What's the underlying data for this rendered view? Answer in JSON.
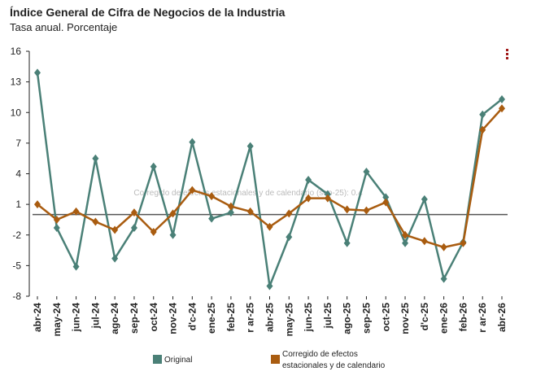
{
  "chart_data": {
    "type": "line",
    "title": "Índice General de Cifra de Negocios de la Industria",
    "subtitle": "Tasa anual. Porcentaje",
    "categories": [
      "abr-24",
      "may-24",
      "jun-24",
      "jul-24",
      "ago-24",
      "sep-24",
      "oct-24",
      "nov-24",
      "d'c-24",
      "ene-25",
      "feb-25",
      "r ar-25",
      "abr-25",
      "may-25",
      "jun-25",
      "jul-25",
      "ago-25",
      "sep-25",
      "oct-25",
      "nov-25",
      "d'c-25",
      "ene-26",
      "feb-26",
      "r ar-26",
      "abr-26"
    ],
    "series": [
      {
        "name": "Original",
        "color": "#4a8077",
        "values": [
          13.9,
          -1.3,
          -5.1,
          5.5,
          -4.3,
          -1.3,
          4.7,
          -2.0,
          7.1,
          -0.4,
          0.2,
          6.7,
          -7.0,
          -2.2,
          3.4,
          2.0,
          -2.8,
          4.2,
          1.7,
          -2.8,
          1.5,
          -6.3,
          -2.7,
          9.8,
          11.3
        ]
      },
      {
        "name": "Corregido de efectos estacionales y de calendario",
        "color": "#a95c10",
        "values": [
          1.0,
          -0.5,
          0.3,
          -0.7,
          -1.5,
          0.2,
          -1.7,
          0.1,
          2.4,
          1.8,
          0.8,
          0.3,
          -1.2,
          0.1,
          1.6,
          1.6,
          0.5,
          0.4,
          1.2,
          -2.0,
          -2.6,
          -3.2,
          -2.8,
          8.3,
          10.4
        ]
      }
    ],
    "ylim": [
      -8,
      16
    ],
    "yticks": [
      16,
      13,
      10,
      7,
      4,
      1,
      -2,
      -5,
      -8
    ],
    "tooltip": "Corregido de efectos estacionales y de calendario (sep-25): 0.4"
  }
}
